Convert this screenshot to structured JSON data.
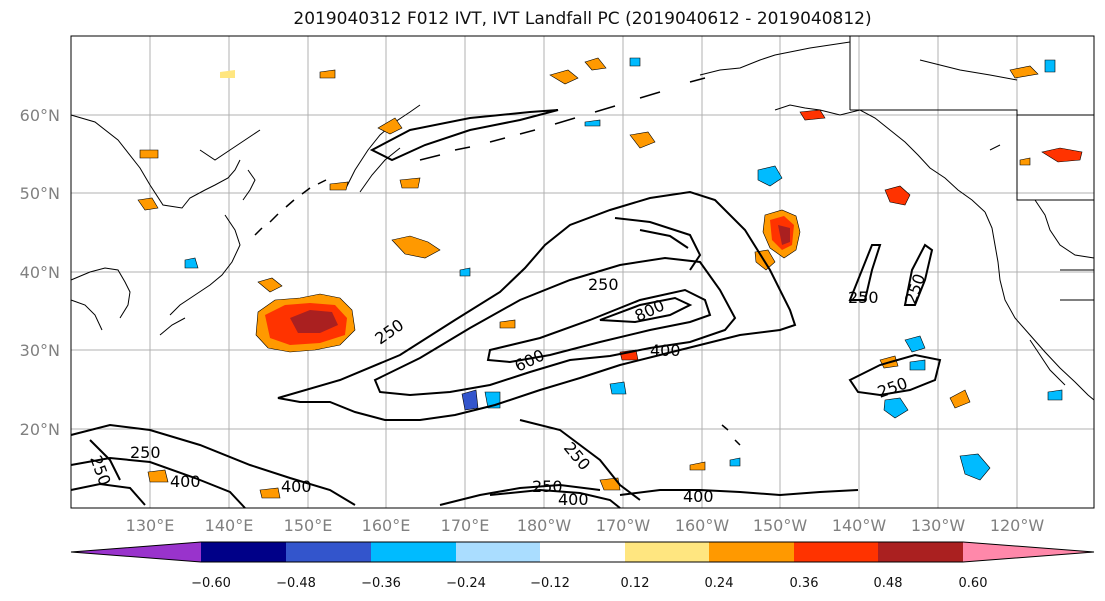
{
  "title": "2019040312 F012 IVT, IVT Landfall PC (2019040612 - 2019040812)",
  "lat_labels": [
    "60°N",
    "50°N",
    "40°N",
    "30°N",
    "20°N"
  ],
  "lon_labels": [
    "130°E",
    "140°E",
    "150°E",
    "160°E",
    "170°E",
    "180°W",
    "170°W",
    "160°W",
    "150°W",
    "140°W",
    "130°W",
    "120°W"
  ],
  "colorbar": {
    "colors": [
      "#9933cc",
      "#000088",
      "#3355cc",
      "#00bbff",
      "#aaddff",
      "#ffffff",
      "#ffe680",
      "#ff9900",
      "#ff3300",
      "#aa2020",
      "#ff88aa"
    ],
    "tick_labels": [
      "-0.60",
      "-0.48",
      "-0.36",
      "-0.24",
      "-0.12",
      "0.12",
      "0.24",
      "0.36",
      "0.48",
      "0.60"
    ]
  },
  "contour_labels": [
    "250",
    "250",
    "250",
    "250",
    "250",
    "250",
    "250",
    "400",
    "400",
    "400",
    "400",
    "400",
    "600",
    "800",
    "250",
    "250"
  ]
}
